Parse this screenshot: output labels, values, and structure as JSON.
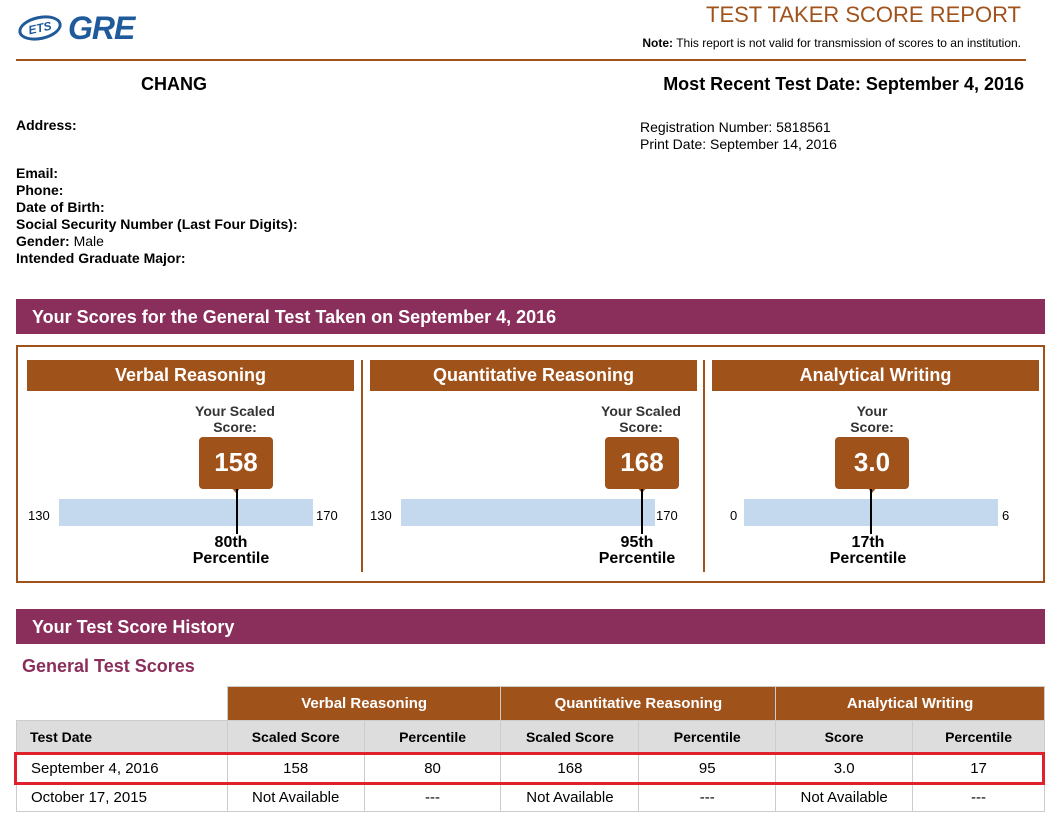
{
  "header": {
    "logo_ets": "ETS",
    "logo_gre": "GRE",
    "report_title": "TEST TAKER SCORE REPORT",
    "note_label": "Note:",
    "note_text": "This report is not valid for transmission of scores to an institution."
  },
  "taker": {
    "name": "CHANG",
    "most_recent_label": "Most Recent Test Date:",
    "most_recent_date": "September 4, 2016",
    "registration_label": "Registration Number:",
    "registration_number": "5818561",
    "print_label": "Print Date:",
    "print_date": "September 14, 2016",
    "address_label": "Address:",
    "email_label": "Email:",
    "phone_label": "Phone:",
    "dob_label": "Date of Birth:",
    "ssn_label": "Social Security Number (Last Four Digits):",
    "gender_label": "Gender:",
    "gender_value": "Male",
    "major_label": "Intended Graduate Major:"
  },
  "scores_banner": "Your Scores for the General Test Taken on September 4, 2016",
  "panels": [
    {
      "title": "Verbal Reasoning",
      "label_line1": "Your Scaled",
      "label_line2": "Score:",
      "score": "158",
      "score_value": 158,
      "min": "130",
      "max": "170",
      "min_value": 130,
      "max_value": 170,
      "pct_line1": "80th",
      "pct_line2": "Percentile"
    },
    {
      "title": "Quantitative Reasoning",
      "label_line1": "Your Scaled",
      "label_line2": "Score:",
      "score": "168",
      "score_value": 168,
      "min": "130",
      "max": "170",
      "min_value": 130,
      "max_value": 170,
      "pct_line1": "95th",
      "pct_line2": "Percentile"
    },
    {
      "title": "Analytical Writing",
      "label_line1": "Your",
      "label_line2": "Score:",
      "score": "3.0",
      "score_value": 3.0,
      "min": "0",
      "max": "6",
      "min_value": 0,
      "max_value": 6,
      "pct_line1": "17th",
      "pct_line2": "Percentile"
    }
  ],
  "history_banner": "Your Test Score History",
  "history_subtitle": "General Test Scores",
  "history": {
    "groups": [
      "Verbal Reasoning",
      "Quantitative Reasoning",
      "Analytical Writing"
    ],
    "columns": [
      "Test Date",
      "Scaled Score",
      "Percentile",
      "Scaled Score",
      "Percentile",
      "Score",
      "Percentile"
    ],
    "rows": [
      [
        "September 4, 2016",
        "158",
        "80",
        "168",
        "95",
        "3.0",
        "17"
      ],
      [
        "October 17, 2015",
        "Not Available",
        "---",
        "Not Available",
        "---",
        "Not Available",
        "---"
      ]
    ]
  },
  "colors": {
    "accent": "#a0521b",
    "banner": "#8a2e5b",
    "bar": "#c5d9ee",
    "highlight": "#e0202a",
    "logo": "#1f5a9a"
  }
}
